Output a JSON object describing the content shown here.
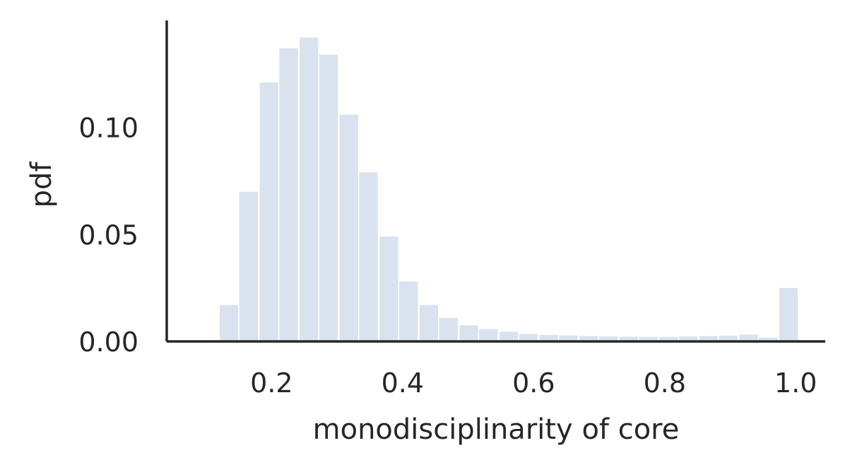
{
  "chart_data": {
    "type": "bar",
    "title": "",
    "xlabel": "monodisciplinarity of core",
    "ylabel": "pdf",
    "xlim": [
      0.04,
      1.045
    ],
    "ylim": [
      0,
      0.15
    ],
    "x_ticks": [
      0.2,
      0.4,
      0.6,
      0.8,
      1.0
    ],
    "x_tick_labels": [
      "0.2",
      "0.4",
      "0.6",
      "0.8",
      "1.0"
    ],
    "y_ticks": [
      0.0,
      0.05,
      0.1
    ],
    "y_tick_labels": [
      "0.00",
      "0.05",
      "0.10"
    ],
    "grid": false,
    "bar_color": "#dae2ef",
    "axis_color": "#262626",
    "bin_start": 0.12,
    "bin_width": 0.0305,
    "bins": [
      {
        "x": 0.135,
        "value": 0.017
      },
      {
        "x": 0.165,
        "value": 0.07
      },
      {
        "x": 0.196,
        "value": 0.121
      },
      {
        "x": 0.226,
        "value": 0.137
      },
      {
        "x": 0.257,
        "value": 0.142
      },
      {
        "x": 0.287,
        "value": 0.134
      },
      {
        "x": 0.318,
        "value": 0.106
      },
      {
        "x": 0.348,
        "value": 0.079
      },
      {
        "x": 0.379,
        "value": 0.049
      },
      {
        "x": 0.409,
        "value": 0.028
      },
      {
        "x": 0.44,
        "value": 0.017
      },
      {
        "x": 0.47,
        "value": 0.011
      },
      {
        "x": 0.501,
        "value": 0.0075
      },
      {
        "x": 0.531,
        "value": 0.0058
      },
      {
        "x": 0.562,
        "value": 0.0045
      },
      {
        "x": 0.592,
        "value": 0.0035
      },
      {
        "x": 0.623,
        "value": 0.003
      },
      {
        "x": 0.653,
        "value": 0.0028
      },
      {
        "x": 0.684,
        "value": 0.0025
      },
      {
        "x": 0.714,
        "value": 0.0023
      },
      {
        "x": 0.745,
        "value": 0.0022
      },
      {
        "x": 0.775,
        "value": 0.0021
      },
      {
        "x": 0.806,
        "value": 0.0021
      },
      {
        "x": 0.836,
        "value": 0.0023
      },
      {
        "x": 0.867,
        "value": 0.0025
      },
      {
        "x": 0.897,
        "value": 0.0027
      },
      {
        "x": 0.928,
        "value": 0.0032
      },
      {
        "x": 0.958,
        "value": 0.0018
      },
      {
        "x": 0.989,
        "value": 0.025
      }
    ]
  }
}
